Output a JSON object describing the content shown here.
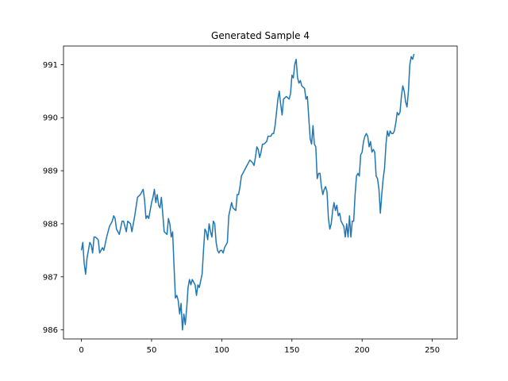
{
  "chart_data": {
    "type": "line",
    "title": "Generated Sample 4",
    "xlabel": "",
    "ylabel": "",
    "xlim": [
      -12.75,
      267.75
    ],
    "ylim": [
      985.83,
      991.35
    ],
    "xticks": [
      0,
      50,
      100,
      150,
      200,
      250
    ],
    "yticks": [
      986,
      987,
      988,
      989,
      990,
      991
    ],
    "grid": false,
    "series_color": "#1f77b4",
    "anchors": [
      [
        0,
        987.5
      ],
      [
        1,
        987.65
      ],
      [
        2,
        987.25
      ],
      [
        3,
        987.05
      ],
      [
        4,
        987.35
      ],
      [
        5,
        987.5
      ],
      [
        6,
        987.65
      ],
      [
        7,
        987.6
      ],
      [
        8,
        987.45
      ],
      [
        9,
        987.75
      ],
      [
        10,
        987.75
      ],
      [
        12,
        987.7
      ],
      [
        13,
        987.45
      ],
      [
        15,
        987.55
      ],
      [
        16,
        987.5
      ],
      [
        18,
        987.75
      ],
      [
        20,
        987.95
      ],
      [
        22,
        988.05
      ],
      [
        23,
        988.15
      ],
      [
        24,
        988.1
      ],
      [
        25,
        987.9
      ],
      [
        27,
        987.8
      ],
      [
        29,
        988.05
      ],
      [
        30,
        988.05
      ],
      [
        32,
        987.85
      ],
      [
        33,
        988.05
      ],
      [
        35,
        988.0
      ],
      [
        36,
        987.85
      ],
      [
        38,
        988.15
      ],
      [
        40,
        988.5
      ],
      [
        42,
        988.55
      ],
      [
        44,
        988.65
      ],
      [
        45,
        988.45
      ],
      [
        46,
        988.1
      ],
      [
        47,
        988.15
      ],
      [
        48,
        988.1
      ],
      [
        50,
        988.4
      ],
      [
        51,
        988.5
      ],
      [
        52,
        988.65
      ],
      [
        53,
        988.4
      ],
      [
        54,
        988.55
      ],
      [
        55,
        988.35
      ],
      [
        56,
        988.3
      ],
      [
        57,
        988.5
      ],
      [
        59,
        987.85
      ],
      [
        61,
        987.8
      ],
      [
        62,
        988.1
      ],
      [
        63,
        988.0
      ],
      [
        64,
        987.75
      ],
      [
        65,
        987.85
      ],
      [
        66,
        987.2
      ],
      [
        67,
        986.6
      ],
      [
        68,
        986.65
      ],
      [
        69,
        986.55
      ],
      [
        70,
        986.3
      ],
      [
        71,
        986.5
      ],
      [
        72,
        986.0
      ],
      [
        73,
        986.3
      ],
      [
        74,
        986.1
      ],
      [
        75,
        986.4
      ],
      [
        76,
        986.8
      ],
      [
        77,
        986.95
      ],
      [
        78,
        986.85
      ],
      [
        79,
        986.95
      ],
      [
        81,
        986.85
      ],
      [
        82,
        986.65
      ],
      [
        83,
        986.85
      ],
      [
        84,
        986.8
      ],
      [
        86,
        987.05
      ],
      [
        87,
        987.5
      ],
      [
        88,
        987.9
      ],
      [
        89,
        987.85
      ],
      [
        90,
        987.7
      ],
      [
        91,
        988.0
      ],
      [
        92,
        987.85
      ],
      [
        93,
        987.75
      ],
      [
        94,
        988.05
      ],
      [
        95,
        988.0
      ],
      [
        96,
        987.65
      ],
      [
        97,
        987.5
      ],
      [
        98,
        987.45
      ],
      [
        99,
        987.5
      ],
      [
        100,
        987.5
      ],
      [
        101,
        987.45
      ],
      [
        102,
        987.55
      ],
      [
        104,
        987.65
      ],
      [
        105,
        988.15
      ],
      [
        107,
        988.4
      ],
      [
        108,
        988.3
      ],
      [
        110,
        988.25
      ],
      [
        111,
        988.55
      ],
      [
        112,
        988.55
      ],
      [
        113,
        988.7
      ],
      [
        114,
        988.9
      ],
      [
        116,
        989.0
      ],
      [
        118,
        989.1
      ],
      [
        120,
        989.2
      ],
      [
        122,
        989.15
      ],
      [
        123,
        989.1
      ],
      [
        124,
        989.25
      ],
      [
        125,
        989.45
      ],
      [
        126,
        989.4
      ],
      [
        127,
        989.25
      ],
      [
        128,
        989.35
      ],
      [
        129,
        989.5
      ],
      [
        130,
        989.5
      ],
      [
        132,
        989.55
      ],
      [
        133,
        989.65
      ],
      [
        135,
        989.65
      ],
      [
        136,
        989.7
      ],
      [
        137,
        989.7
      ],
      [
        138,
        989.85
      ],
      [
        139,
        990.1
      ],
      [
        140,
        990.35
      ],
      [
        141,
        990.5
      ],
      [
        142,
        990.25
      ],
      [
        143,
        990.05
      ],
      [
        144,
        990.35
      ],
      [
        146,
        990.4
      ],
      [
        148,
        990.35
      ],
      [
        149,
        990.45
      ],
      [
        150,
        990.8
      ],
      [
        151,
        990.75
      ],
      [
        152,
        991.0
      ],
      [
        153,
        991.1
      ],
      [
        154,
        990.75
      ],
      [
        155,
        990.65
      ],
      [
        156,
        990.7
      ],
      [
        157,
        990.6
      ],
      [
        159,
        990.55
      ],
      [
        160,
        990.35
      ],
      [
        161,
        990.4
      ],
      [
        162,
        990.0
      ],
      [
        163,
        989.6
      ],
      [
        164,
        989.5
      ],
      [
        165,
        989.85
      ],
      [
        166,
        989.5
      ],
      [
        167,
        989.45
      ],
      [
        168,
        988.85
      ],
      [
        169,
        988.95
      ],
      [
        170,
        988.95
      ],
      [
        171,
        988.7
      ],
      [
        172,
        988.55
      ],
      [
        173,
        988.65
      ],
      [
        174,
        988.7
      ],
      [
        175,
        988.6
      ],
      [
        176,
        988.1
      ],
      [
        177,
        987.9
      ],
      [
        178,
        988.0
      ],
      [
        179,
        988.25
      ],
      [
        180,
        988.4
      ],
      [
        181,
        988.25
      ],
      [
        182,
        988.35
      ],
      [
        183,
        988.15
      ],
      [
        184,
        988.2
      ],
      [
        185,
        988.05
      ],
      [
        187,
        987.95
      ],
      [
        188,
        987.75
      ],
      [
        189,
        988.0
      ],
      [
        190,
        987.75
      ],
      [
        191,
        988.15
      ],
      [
        192,
        987.75
      ],
      [
        193,
        988.05
      ],
      [
        194,
        988.05
      ],
      [
        195,
        988.55
      ],
      [
        196,
        988.9
      ],
      [
        197,
        988.95
      ],
      [
        198,
        988.9
      ],
      [
        199,
        989.3
      ],
      [
        200,
        989.35
      ],
      [
        201,
        989.55
      ],
      [
        202,
        989.65
      ],
      [
        203,
        989.7
      ],
      [
        204,
        989.65
      ],
      [
        205,
        989.45
      ],
      [
        206,
        989.55
      ],
      [
        207,
        989.35
      ],
      [
        208,
        989.4
      ],
      [
        209,
        989.35
      ],
      [
        210,
        988.9
      ],
      [
        211,
        988.85
      ],
      [
        212,
        988.65
      ],
      [
        213,
        988.2
      ],
      [
        214,
        988.55
      ],
      [
        215,
        988.85
      ],
      [
        216,
        989.05
      ],
      [
        217,
        989.5
      ],
      [
        218,
        989.75
      ],
      [
        219,
        989.65
      ],
      [
        220,
        989.75
      ],
      [
        221,
        989.7
      ],
      [
        222,
        989.7
      ],
      [
        223,
        989.75
      ],
      [
        224,
        989.9
      ],
      [
        225,
        990.1
      ],
      [
        226,
        990.05
      ],
      [
        227,
        990.1
      ],
      [
        228,
        990.4
      ],
      [
        229,
        990.6
      ],
      [
        230,
        990.5
      ],
      [
        231,
        990.3
      ],
      [
        232,
        990.2
      ],
      [
        233,
        990.5
      ],
      [
        234,
        991.0
      ],
      [
        235,
        991.15
      ],
      [
        236,
        991.1
      ],
      [
        237,
        991.2
      ]
    ]
  }
}
